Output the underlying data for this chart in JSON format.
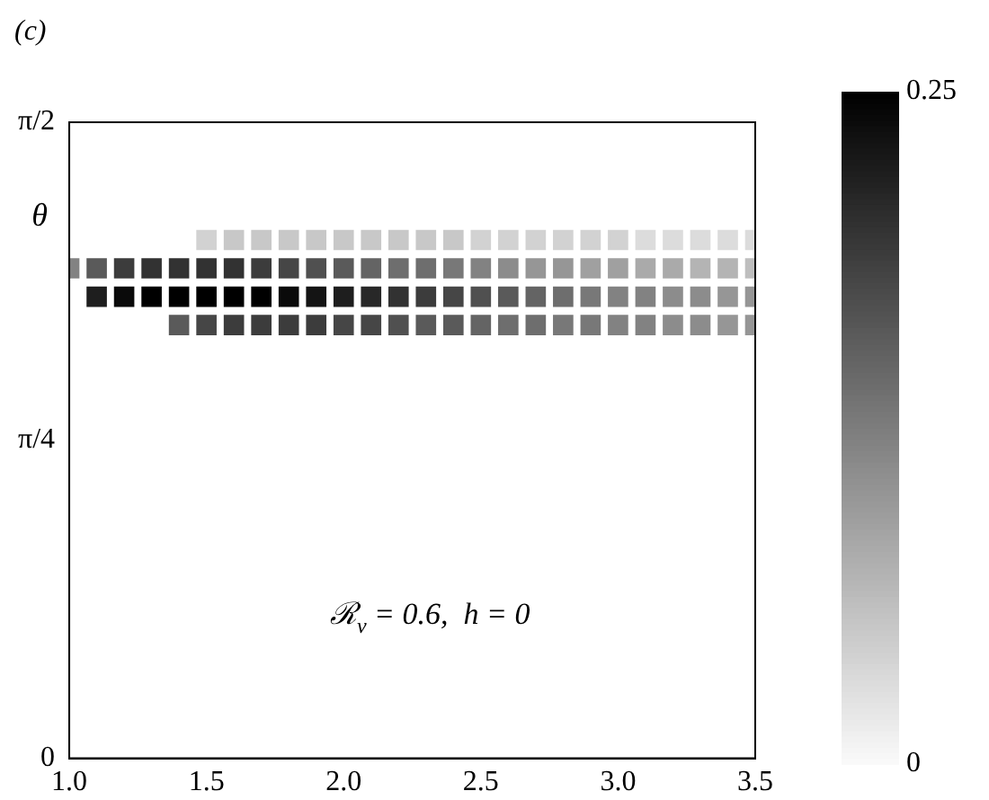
{
  "chart_data": {
    "type": "scatter",
    "title": "(c)",
    "ylabel": "θ",
    "marker": "square",
    "annotations": [
      "ℛ$_{v}$ = 0.6,  h = 0"
    ],
    "xlim": [
      1.0,
      3.5
    ],
    "xticks": [
      {
        "value": 1.0,
        "label": "1.0"
      },
      1.5,
      {
        "value": 2.0,
        "label": "2.0"
      },
      2.5,
      {
        "value": 3.0,
        "label": "3.0"
      },
      3.5
    ],
    "ylim": [
      0,
      1.5708
    ],
    "yticks": [
      {
        "value": 0,
        "label": "0"
      },
      {
        "value": 0.7854,
        "label": "π/4"
      },
      {
        "value": 1.5708,
        "label": "π/2"
      }
    ],
    "clim": [
      0,
      0.25
    ],
    "cticks": [
      0,
      0.25
    ],
    "series": [
      {
        "x": [
          1.4,
          1.5,
          1.6,
          1.7,
          1.8,
          1.9,
          2.0,
          2.1,
          2.2,
          2.3,
          2.4,
          2.5,
          2.6,
          2.7,
          2.8,
          2.9,
          3.0,
          3.1,
          3.2,
          3.3,
          3.4,
          3.5
        ],
        "values": [
          1.07,
          1.07,
          1.07,
          1.07,
          1.07,
          1.07,
          1.07,
          1.07,
          1.07,
          1.07,
          1.07,
          1.07,
          1.07,
          1.07,
          1.07,
          1.07,
          1.07,
          1.07,
          1.07,
          1.07,
          1.07,
          1.07
        ],
        "cvalues": [
          0.16,
          0.18,
          0.19,
          0.19,
          0.19,
          0.19,
          0.18,
          0.18,
          0.17,
          0.16,
          0.16,
          0.15,
          0.14,
          0.14,
          0.13,
          0.13,
          0.12,
          0.12,
          0.11,
          0.11,
          0.1,
          0.1
        ],
        "colors": [
          "#5a5a5a",
          "#464646",
          "#3c3c3c",
          "#3c3c3c",
          "#3c3c3c",
          "#3c3c3c",
          "#464646",
          "#464646",
          "#505050",
          "#5a5a5a",
          "#5a5a5a",
          "#646464",
          "#6e6e6e",
          "#6e6e6e",
          "#787878",
          "#787878",
          "#828282",
          "#828282",
          "#8c8c8c",
          "#8c8c8c",
          "#969696",
          "#969696"
        ]
      },
      {
        "x": [
          1.1,
          1.2,
          1.3,
          1.4,
          1.5,
          1.6,
          1.7,
          1.8,
          1.9,
          2.0,
          2.1,
          2.2,
          2.3,
          2.4,
          2.5,
          2.6,
          2.7,
          2.8,
          2.9,
          3.0,
          3.1,
          3.2,
          3.3,
          3.4,
          3.5
        ],
        "values": [
          1.14,
          1.14,
          1.14,
          1.14,
          1.14,
          1.14,
          1.14,
          1.14,
          1.14,
          1.14,
          1.14,
          1.14,
          1.14,
          1.14,
          1.14,
          1.14,
          1.14,
          1.14,
          1.14,
          1.14,
          1.14,
          1.14,
          1.14,
          1.14,
          1.14
        ],
        "cvalues": [
          0.22,
          0.24,
          0.25,
          0.25,
          0.25,
          0.25,
          0.25,
          0.24,
          0.23,
          0.22,
          0.21,
          0.2,
          0.19,
          0.18,
          0.17,
          0.16,
          0.15,
          0.14,
          0.13,
          0.12,
          0.12,
          0.11,
          0.11,
          0.1,
          0.1
        ],
        "colors": [
          "#1e1e1e",
          "#0a0a0a",
          "#000000",
          "#000000",
          "#000000",
          "#000000",
          "#000000",
          "#0a0a0a",
          "#141414",
          "#1e1e1e",
          "#282828",
          "#323232",
          "#3c3c3c",
          "#464646",
          "#505050",
          "#5a5a5a",
          "#646464",
          "#6e6e6e",
          "#787878",
          "#828282",
          "#828282",
          "#8c8c8c",
          "#8c8c8c",
          "#969696",
          "#969696"
        ]
      },
      {
        "x": [
          1.0,
          1.1,
          1.2,
          1.3,
          1.4,
          1.5,
          1.6,
          1.7,
          1.8,
          1.9,
          2.0,
          2.1,
          2.2,
          2.3,
          2.4,
          2.5,
          2.6,
          2.7,
          2.8,
          2.9,
          3.0,
          3.1,
          3.2,
          3.3,
          3.4,
          3.5
        ],
        "values": [
          1.21,
          1.21,
          1.21,
          1.21,
          1.21,
          1.21,
          1.21,
          1.21,
          1.21,
          1.21,
          1.21,
          1.21,
          1.21,
          1.21,
          1.21,
          1.21,
          1.21,
          1.21,
          1.21,
          1.21,
          1.21,
          1.21,
          1.21,
          1.21,
          1.21,
          1.21
        ],
        "cvalues": [
          0.12,
          0.16,
          0.19,
          0.2,
          0.2,
          0.2,
          0.2,
          0.19,
          0.18,
          0.17,
          0.16,
          0.15,
          0.14,
          0.14,
          0.13,
          0.12,
          0.11,
          0.1,
          0.1,
          0.09,
          0.09,
          0.08,
          0.08,
          0.07,
          0.07,
          0.06
        ],
        "colors": [
          "#828282",
          "#5a5a5a",
          "#3c3c3c",
          "#323232",
          "#323232",
          "#323232",
          "#323232",
          "#3c3c3c",
          "#464646",
          "#505050",
          "#5a5a5a",
          "#646464",
          "#6e6e6e",
          "#6e6e6e",
          "#787878",
          "#828282",
          "#8c8c8c",
          "#969696",
          "#969696",
          "#a0a0a0",
          "#a0a0a0",
          "#aaaaaa",
          "#aaaaaa",
          "#b4b4b4",
          "#b4b4b4",
          "#bebebe"
        ]
      },
      {
        "x": [
          1.5,
          1.6,
          1.7,
          1.8,
          1.9,
          2.0,
          2.1,
          2.2,
          2.3,
          2.4,
          2.5,
          2.6,
          2.7,
          2.8,
          2.9,
          3.0,
          3.1,
          3.2,
          3.3,
          3.4,
          3.5
        ],
        "values": [
          1.28,
          1.28,
          1.28,
          1.28,
          1.28,
          1.28,
          1.28,
          1.28,
          1.28,
          1.28,
          1.28,
          1.28,
          1.28,
          1.28,
          1.28,
          1.28,
          1.28,
          1.28,
          1.28,
          1.28,
          1.28
        ],
        "cvalues": [
          0.04,
          0.05,
          0.05,
          0.05,
          0.05,
          0.05,
          0.05,
          0.05,
          0.05,
          0.05,
          0.04,
          0.04,
          0.04,
          0.04,
          0.04,
          0.04,
          0.03,
          0.03,
          0.03,
          0.03,
          0.03
        ],
        "colors": [
          "#d2d2d2",
          "#c8c8c8",
          "#c8c8c8",
          "#c8c8c8",
          "#c8c8c8",
          "#c8c8c8",
          "#c8c8c8",
          "#c8c8c8",
          "#c8c8c8",
          "#c8c8c8",
          "#d2d2d2",
          "#d2d2d2",
          "#d2d2d2",
          "#d2d2d2",
          "#d2d2d2",
          "#d2d2d2",
          "#dcdcdc",
          "#dcdcdc",
          "#dcdcdc",
          "#dcdcdc",
          "#dcdcdc"
        ]
      }
    ]
  }
}
